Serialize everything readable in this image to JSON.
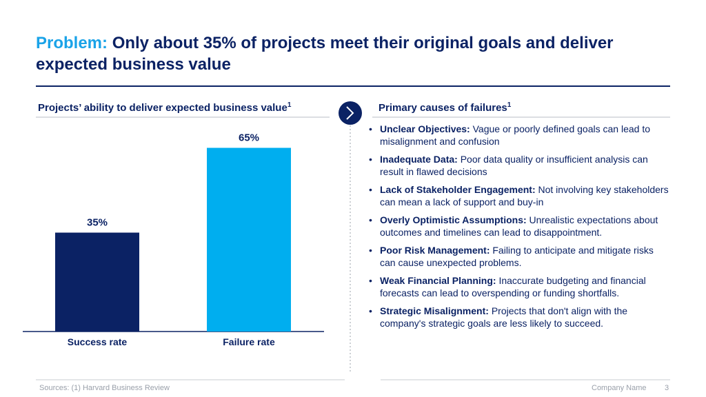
{
  "title_lead": "Problem:",
  "title_rest": "Only about 35% of projects meet their original goals and deliver expected business value",
  "chart_data": {
    "type": "bar",
    "title": "Projects’ ability to deliver expected business value",
    "title_note": "1",
    "categories": [
      "Success rate",
      "Failure rate"
    ],
    "values": [
      35,
      65
    ],
    "value_labels": [
      "35%",
      "65%"
    ],
    "colors": [
      "#0b2264",
      "#00aeef"
    ]
  },
  "causes": {
    "title": "Primary causes of failures",
    "title_note": "1",
    "items": [
      {
        "label": "Unclear Objectives:",
        "text": "Vague or poorly defined goals can lead to misalignment and confusion"
      },
      {
        "label": "Inadequate Data:",
        "text": "Poor data quality or insufficient analysis can result in flawed decisions"
      },
      {
        "label": "Lack of Stakeholder Engagement:",
        "text": "Not involving key stakeholders can mean a lack of support and buy-in"
      },
      {
        "label": "Overly Optimistic Assumptions:",
        "text": "Unrealistic expectations about outcomes and timelines can lead to disappointment."
      },
      {
        "label": "Poor Risk Management:",
        "text": "Failing to anticipate and mitigate risks can cause unexpected problems."
      },
      {
        "label": "Weak Financial Planning:",
        "text": "Inaccurate budgeting and financial forecasts can lead to overspending or funding shortfalls."
      },
      {
        "label": "Strategic Misalignment:",
        "text": "Projects that don't align with the company's strategic goals are less likely to succeed."
      }
    ]
  },
  "footer": {
    "source": "Sources: (1) Harvard Business Review",
    "company": "Company Name",
    "page": 3
  }
}
